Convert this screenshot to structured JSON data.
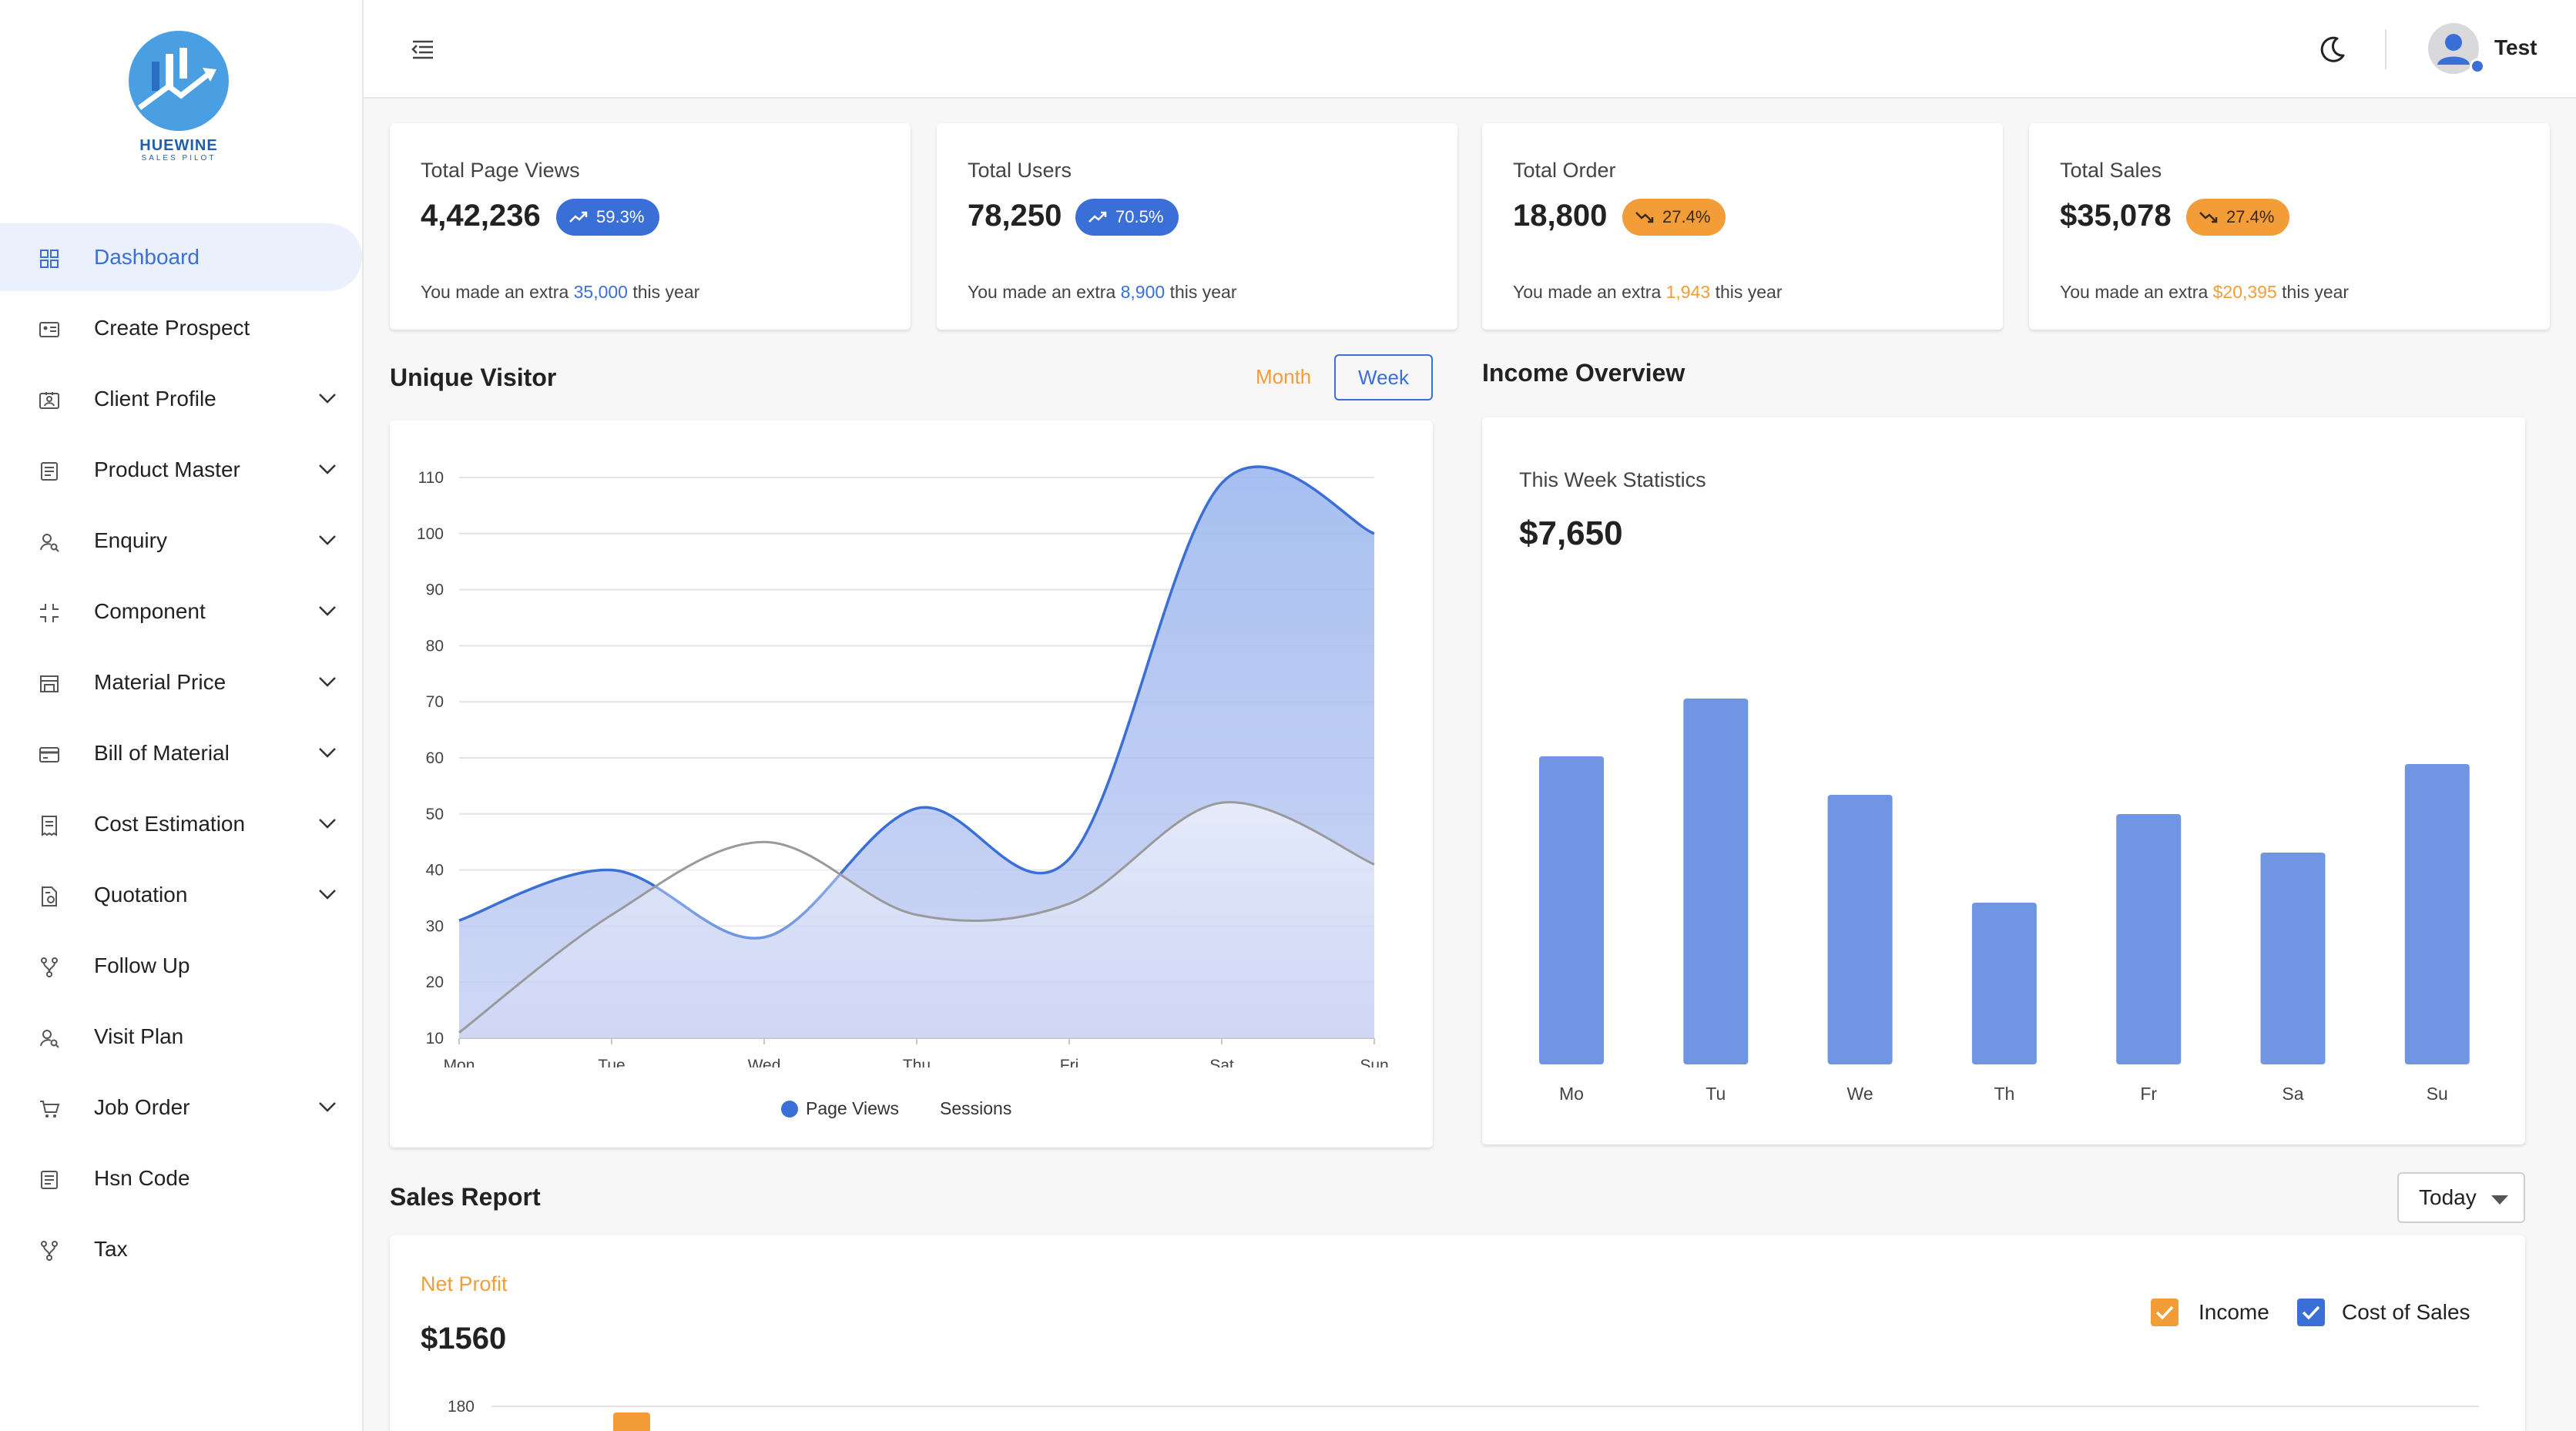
{
  "brand": {
    "name": "HUEWINE",
    "tagline": "SALES PILOT",
    "primary_color": "#3b6fd8",
    "accent_color": "#f29d38"
  },
  "sidebar": {
    "items": [
      {
        "label": "Dashboard",
        "icon": "dashboard-grid-icon",
        "active": true,
        "expandable": false
      },
      {
        "label": "Create Prospect",
        "icon": "id-card-icon",
        "active": false,
        "expandable": false
      },
      {
        "label": "Client Profile",
        "icon": "contact-card-icon",
        "active": false,
        "expandable": true
      },
      {
        "label": "Product Master",
        "icon": "list-doc-icon",
        "active": false,
        "expandable": true
      },
      {
        "label": "Enquiry",
        "icon": "user-search-icon",
        "active": false,
        "expandable": true
      },
      {
        "label": "Component",
        "icon": "corners-icon",
        "active": false,
        "expandable": true
      },
      {
        "label": "Material Price",
        "icon": "store-icon",
        "active": false,
        "expandable": true
      },
      {
        "label": "Bill of Material",
        "icon": "credit-card-icon",
        "active": false,
        "expandable": true
      },
      {
        "label": "Cost Estimation",
        "icon": "receipt-icon",
        "active": false,
        "expandable": true
      },
      {
        "label": "Quotation",
        "icon": "file-settings-icon",
        "active": false,
        "expandable": true
      },
      {
        "label": "Follow Up",
        "icon": "branch-icon",
        "active": false,
        "expandable": false
      },
      {
        "label": "Visit Plan",
        "icon": "user-search-icon",
        "active": false,
        "expandable": false
      },
      {
        "label": "Job Order",
        "icon": "cart-icon",
        "active": false,
        "expandable": true
      },
      {
        "label": "Hsn Code",
        "icon": "list-doc-icon",
        "active": false,
        "expandable": false
      },
      {
        "label": "Tax",
        "icon": "branch-icon",
        "active": false,
        "expandable": false
      }
    ]
  },
  "header": {
    "user_name": "Test"
  },
  "stats": [
    {
      "title": "Total Page Views",
      "value": "4,42,236",
      "badge": "59.3%",
      "trend": "up",
      "tone": "blue",
      "foot_prefix": "You made an extra ",
      "foot_value": "35,000",
      "foot_suffix": " this year"
    },
    {
      "title": "Total Users",
      "value": "78,250",
      "badge": "70.5%",
      "trend": "up",
      "tone": "blue",
      "foot_prefix": "You made an extra ",
      "foot_value": "8,900",
      "foot_suffix": " this year"
    },
    {
      "title": "Total Order",
      "value": "18,800",
      "badge": "27.4%",
      "trend": "down",
      "tone": "orange",
      "foot_prefix": "You made an extra ",
      "foot_value": "1,943",
      "foot_suffix": " this year"
    },
    {
      "title": "Total Sales",
      "value": "$35,078",
      "badge": "27.4%",
      "trend": "down",
      "tone": "orange",
      "foot_prefix": "You made an extra ",
      "foot_value": "$20,395",
      "foot_suffix": " this year"
    }
  ],
  "unique_visitor": {
    "title": "Unique Visitor",
    "tabs": {
      "month": "Month",
      "week": "Week",
      "selected": "Week"
    }
  },
  "income_overview": {
    "title": "Income Overview",
    "subtitle": "This Week Statistics",
    "value": "$7,650"
  },
  "sales_report": {
    "title": "Sales Report",
    "period": "Today",
    "net_profit_label": "Net Profit",
    "net_profit_value": "$1560",
    "legend": [
      {
        "label": "Income",
        "color": "#f29d38",
        "checked": true
      },
      {
        "label": "Cost of Sales",
        "color": "#3b6fd8",
        "checked": true
      }
    ]
  },
  "chart_data": [
    {
      "type": "area",
      "x": [
        "Mon",
        "Tue",
        "Wed",
        "Thu",
        "Fri",
        "Sat",
        "Sun"
      ],
      "series": [
        {
          "name": "Page Views",
          "color": "#3b6fd8",
          "values": [
            31,
            40,
            28,
            51,
            42,
            109,
            100
          ]
        },
        {
          "name": "Sessions",
          "color": "#9a9a9a",
          "values": [
            11,
            32,
            45,
            32,
            34,
            52,
            41
          ]
        }
      ],
      "ylim": [
        10,
        110
      ],
      "yticks": [
        10,
        20,
        30,
        40,
        50,
        60,
        70,
        80,
        90,
        100,
        110
      ],
      "grid": true,
      "legend_position": "bottom-center"
    },
    {
      "type": "bar",
      "categories": [
        "Mo",
        "Tu",
        "We",
        "Th",
        "Fr",
        "Sa",
        "Su"
      ],
      "values": [
        80,
        95,
        70,
        42,
        65,
        55,
        78
      ],
      "ylim": [
        0,
        100
      ],
      "color": "#7096e3",
      "grid": false
    },
    {
      "type": "bar",
      "yticks": [
        180
      ],
      "series_visible": [
        "Income"
      ],
      "color": "#f29d38"
    }
  ]
}
